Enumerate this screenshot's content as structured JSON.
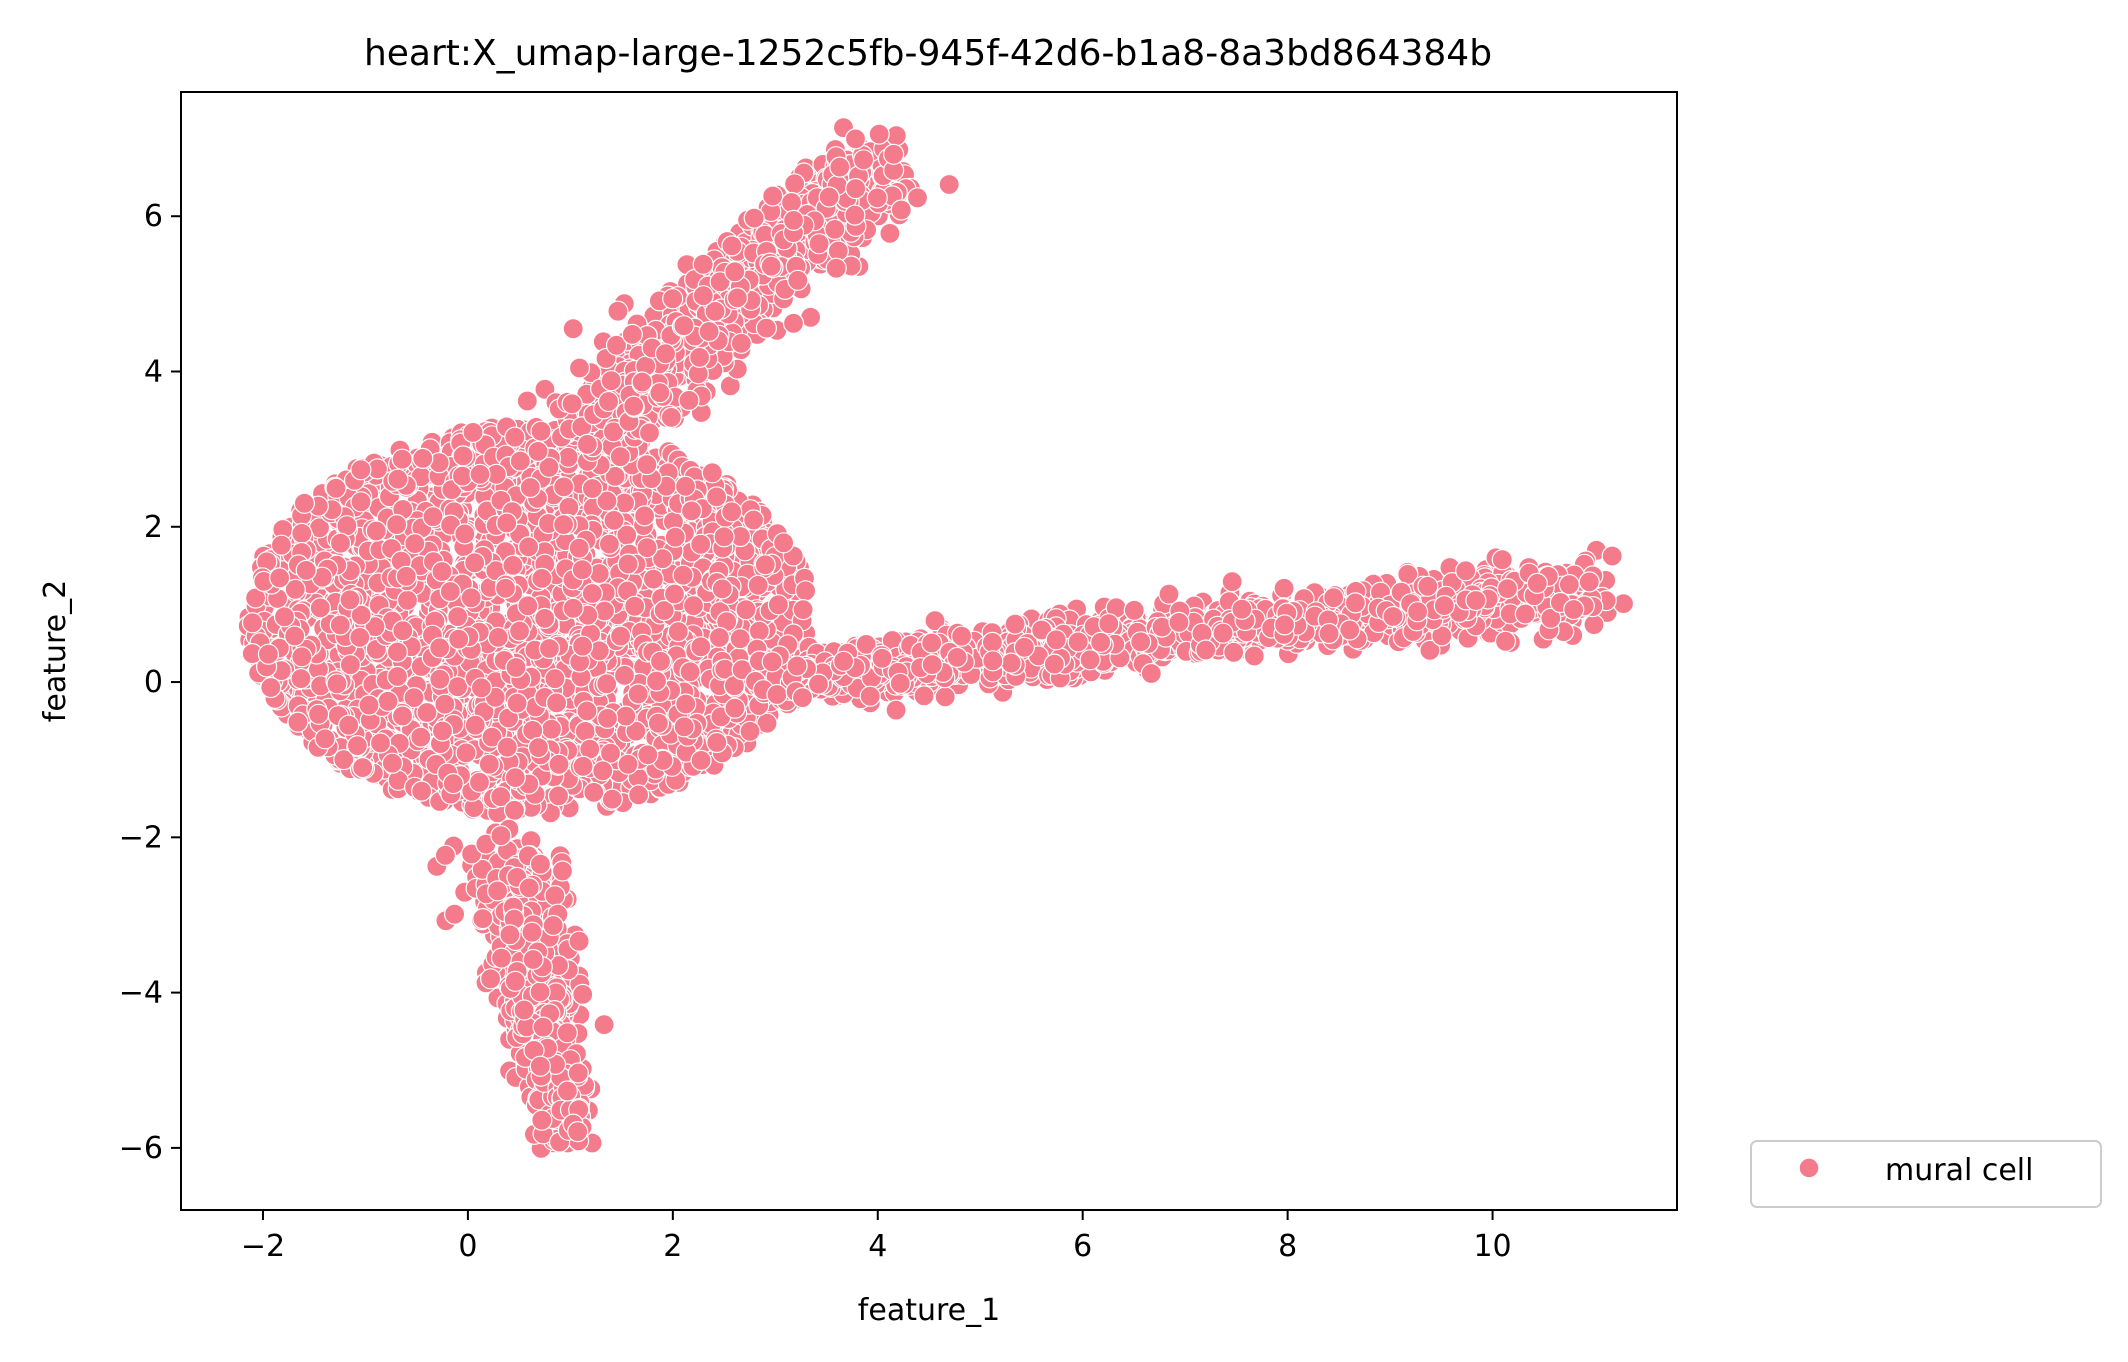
{
  "chart_data": {
    "type": "scatter",
    "title": "heart:X_umap-large-1252c5fb-945f-42d6-b1a8-8a3bd864384b",
    "xlabel": "feature_1",
    "ylabel": "feature_2",
    "xlim": [
      -2.8,
      11.8
    ],
    "ylim": [
      -6.8,
      7.6
    ],
    "x_ticks": [
      -2,
      0,
      2,
      4,
      6,
      8,
      10
    ],
    "y_ticks": [
      -6,
      -4,
      -2,
      0,
      2,
      4,
      6
    ],
    "x_tick_labels": [
      "−2",
      "0",
      "2",
      "4",
      "6",
      "8",
      "10"
    ],
    "y_tick_labels": [
      "−6",
      "−4",
      "−2",
      "0",
      "2",
      "4",
      "6"
    ],
    "grid": false,
    "legend_position": "outside-bottom-right",
    "series": [
      {
        "name": "mural cell",
        "color": "#f37b8c",
        "marker": "circle",
        "clusters": [
          {
            "region": "main-body",
            "cx": 0.6,
            "cy": 0.8,
            "rx": 2.5,
            "ry": 2.5,
            "density": 2600
          },
          {
            "region": "upper-arm",
            "from": [
              1.2,
              3.2
            ],
            "to": [
              4.0,
              6.7
            ],
            "width": 0.55,
            "density": 900
          },
          {
            "region": "lower-arm",
            "from": [
              0.4,
              -2.3
            ],
            "to": [
              0.95,
              -5.9
            ],
            "width": 0.55,
            "density": 700
          },
          {
            "region": "right-arm",
            "from": [
              2.8,
              0.0
            ],
            "to": [
              11.0,
              1.2
            ],
            "width": 0.55,
            "density": 1500
          }
        ]
      }
    ]
  }
}
